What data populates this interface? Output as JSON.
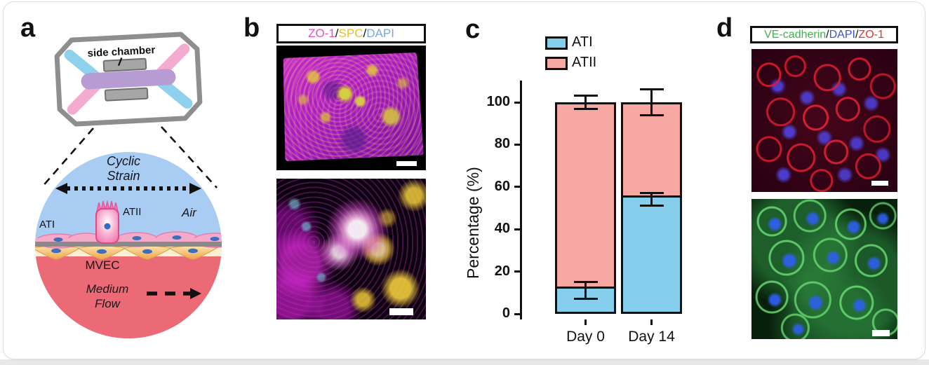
{
  "page": {
    "background": "#ffffff",
    "card_border": "#dedede",
    "footer_strip": "#e8e8e8"
  },
  "figure": {
    "panel_a": {
      "letter": "a",
      "chip_label": "side chamber",
      "labels": {
        "cyclic_line1": "Cyclic",
        "cyclic_line2": "Strain",
        "air": "Air",
        "atii": "ATII",
        "ati": "ATI",
        "mvec": "MVEC",
        "medium_line1": "Medium",
        "medium_line2": "Flow"
      },
      "colors": {
        "air_side": "#A9CDF2",
        "medium_side": "#EC6A75",
        "membrane": "#8A8A8A",
        "epithelium_pink": "#F5AAC8",
        "endothelium_orange": "#EFA54B",
        "channel_blue": "#8ED1EC",
        "channel_pink": "#F4ABD0",
        "channel_center_purple": "#B79BD3",
        "chip_frame_gray": "#8E8E8E"
      }
    },
    "panel_b": {
      "letter": "b",
      "stain_parts": [
        {
          "text": "ZO-1",
          "color": "#E052C8"
        },
        {
          "text": "/",
          "color": "#111111"
        },
        {
          "text": "SPC",
          "color": "#E6BE2A"
        },
        {
          "text": "/",
          "color": "#111111"
        },
        {
          "text": "DAPI",
          "color": "#74A9DC"
        }
      ]
    },
    "panel_c": {
      "letter": "c"
    },
    "panel_d": {
      "letter": "d",
      "stain_parts": [
        {
          "text": "VE-cadherin",
          "color": "#3CB54A"
        },
        {
          "text": "/",
          "color": "#111111"
        },
        {
          "text": "DAPI",
          "color": "#3A50D9"
        },
        {
          "text": "/",
          "color": "#111111"
        },
        {
          "text": "ZO-1",
          "color": "#E23333"
        }
      ]
    }
  },
  "chart_data": {
    "type": "bar",
    "stacked": true,
    "title": "",
    "categories": [
      "Day 0",
      "Day 14"
    ],
    "series": [
      {
        "name": "ATI",
        "color": "#85CEEC",
        "values": [
          11,
          54
        ]
      },
      {
        "name": "ATII",
        "color": "#F7A8A2",
        "values": [
          89,
          46
        ]
      }
    ],
    "error_bars": [
      {
        "category": "Day 0",
        "segment_top": {
          "value": 11,
          "plus": 4,
          "minus": 4
        },
        "stack_top": {
          "value": 100,
          "plus": 3,
          "minus": 3
        }
      },
      {
        "category": "Day 14",
        "segment_top": {
          "value": 54,
          "plus": 3,
          "minus": 3
        },
        "stack_top": {
          "value": 100,
          "plus": 6,
          "minus": 6
        }
      }
    ],
    "ylabel": "Percentage (%)",
    "yticks": [
      0,
      20,
      40,
      60,
      80,
      100
    ],
    "ylim": [
      0,
      110
    ],
    "legend_position": "top",
    "grid": false
  }
}
